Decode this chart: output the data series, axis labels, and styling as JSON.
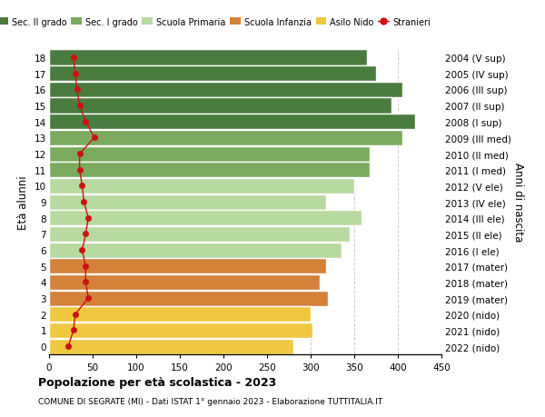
{
  "ages": [
    18,
    17,
    16,
    15,
    14,
    13,
    12,
    11,
    10,
    9,
    8,
    7,
    6,
    5,
    4,
    3,
    2,
    1,
    0
  ],
  "right_labels": [
    "2004 (V sup)",
    "2005 (IV sup)",
    "2006 (III sup)",
    "2007 (II sup)",
    "2008 (I sup)",
    "2009 (III med)",
    "2010 (II med)",
    "2011 (I med)",
    "2012 (V ele)",
    "2013 (IV ele)",
    "2014 (III ele)",
    "2015 (II ele)",
    "2016 (I ele)",
    "2017 (mater)",
    "2018 (mater)",
    "2019 (mater)",
    "2020 (nido)",
    "2021 (nido)",
    "2022 (nido)"
  ],
  "bar_values": [
    365,
    375,
    405,
    393,
    420,
    405,
    368,
    368,
    350,
    318,
    358,
    345,
    335,
    318,
    310,
    320,
    300,
    302,
    280
  ],
  "bar_colors": [
    "#4a7c3f",
    "#4a7c3f",
    "#4a7c3f",
    "#4a7c3f",
    "#4a7c3f",
    "#7aab5e",
    "#7aab5e",
    "#7aab5e",
    "#b8d9a0",
    "#b8d9a0",
    "#b8d9a0",
    "#b8d9a0",
    "#b8d9a0",
    "#d4813a",
    "#d4813a",
    "#d4813a",
    "#f0c840",
    "#f0c840",
    "#f0c840"
  ],
  "stranieri_values": [
    28,
    30,
    32,
    35,
    42,
    52,
    35,
    35,
    38,
    40,
    45,
    42,
    38,
    42,
    42,
    45,
    30,
    28,
    22
  ],
  "title": "Popolazione per età scolastica - 2023",
  "subtitle": "COMUNE DI SEGRATE (MI) - Dati ISTAT 1° gennaio 2023 - Elaborazione TUTTITALIA.IT",
  "ylabel_left": "Età alunni",
  "ylabel_right": "Anni di nascita",
  "xlim": [
    0,
    450
  ],
  "xticks": [
    0,
    50,
    100,
    150,
    200,
    250,
    300,
    350,
    400,
    450
  ],
  "legend_labels": [
    "Sec. II grado",
    "Sec. I grado",
    "Scuola Primaria",
    "Scuola Infanzia",
    "Asilo Nido",
    "Stranieri"
  ],
  "legend_colors": [
    "#4a7c3f",
    "#7aab5e",
    "#b8d9a0",
    "#d4813a",
    "#f0c840",
    "#cc1111"
  ],
  "bar_height": 0.97,
  "grid_color": "#cccccc",
  "bg_color": "#ffffff",
  "stranieri_color": "#cc1111"
}
